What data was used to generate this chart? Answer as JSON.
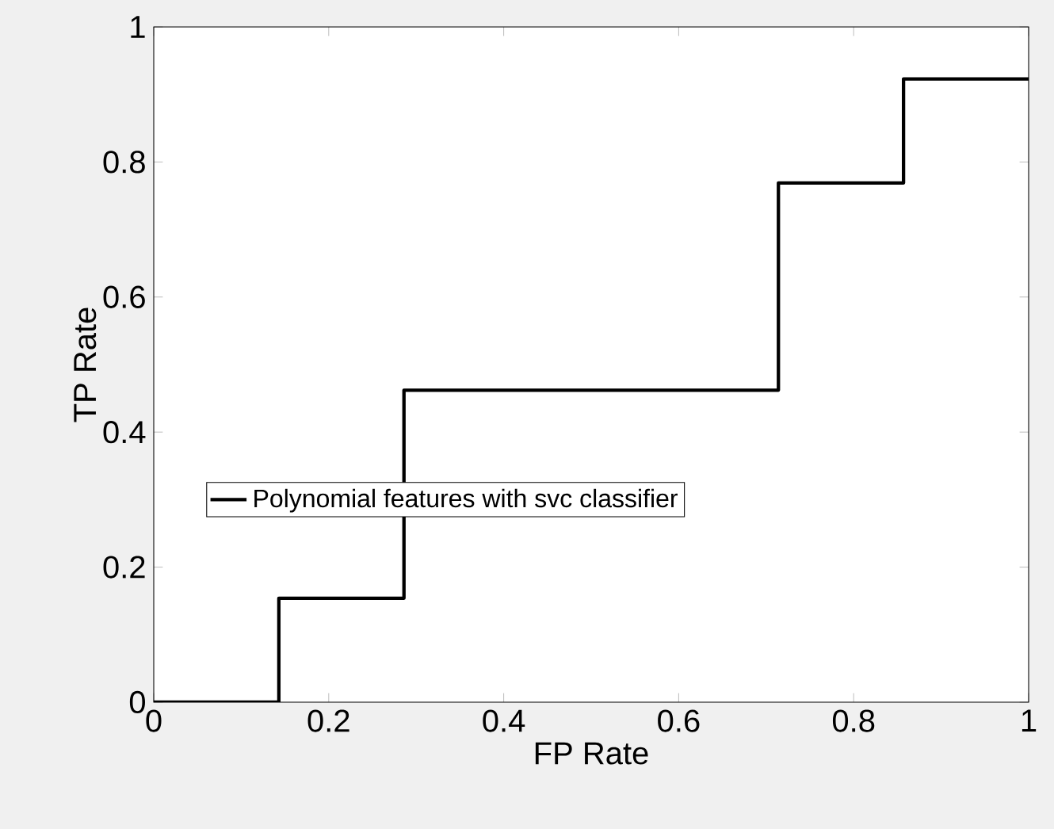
{
  "chart_data": {
    "type": "step",
    "xlabel": "FP Rate",
    "ylabel": "TP Rate",
    "x": [
      0,
      0.143,
      0.286,
      0.714,
      0.857,
      1
    ],
    "series": [
      {
        "name": "Polynomial features with svc classifier",
        "color": "#000000",
        "values": [
          0,
          0.154,
          0.462,
          0.769,
          0.923,
          0.923
        ]
      }
    ],
    "xlim": [
      0,
      1
    ],
    "ylim": [
      0,
      1
    ],
    "xticks": [
      0,
      0.2,
      0.4,
      0.6,
      0.8,
      1
    ],
    "yticks": [
      0,
      0.2,
      0.4,
      0.6,
      0.8,
      1
    ],
    "legend": "left",
    "grid": false,
    "marker": "none",
    "line_style": "solid"
  }
}
